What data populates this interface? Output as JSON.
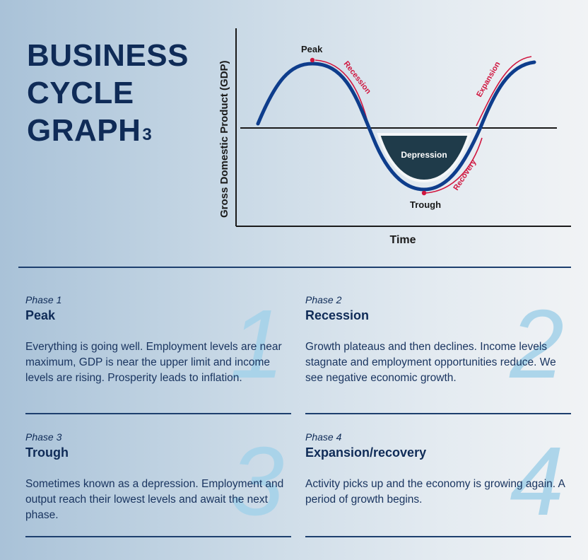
{
  "title": {
    "line1": "BUSINESS",
    "line2": "CYCLE",
    "line3": "GRAPH",
    "superscript": "3"
  },
  "diagram": {
    "y_axis_label": "Gross Domestic Product (GDP)",
    "x_axis_label": "Time",
    "peak_label": "Peak",
    "trough_label": "Trough",
    "recession_label": "Recession",
    "expansion_label": "Expansion",
    "recovery_label": "Recovery",
    "depression_label": "Depression",
    "colors": {
      "curve": "#0e3d8c",
      "accent": "#d0163f",
      "depression_fill": "#1f3b4a",
      "axis": "#1a1a1a"
    }
  },
  "phases": [
    {
      "number": "1",
      "label": "Phase 1",
      "name": "Peak",
      "description": "Everything is going well. Employment levels are near maximum, GDP is  near the upper limit and income levels are rising. Prosperity leads to inflation."
    },
    {
      "number": "2",
      "label": "Phase 2",
      "name": "Recession",
      "description": "Growth plateaus and then declines. Income levels stagnate and employment opportunities reduce. We see negative economic growth."
    },
    {
      "number": "3",
      "label": "Phase 3",
      "name": "Trough",
      "description": "Sometimes known as a depression. Employment and output reach their lowest levels and await the next phase."
    },
    {
      "number": "4",
      "label": "Phase 4",
      "name": "Expansion/recovery",
      "description": "Activity picks up and the economy is growing again. A period of growth begins."
    }
  ]
}
